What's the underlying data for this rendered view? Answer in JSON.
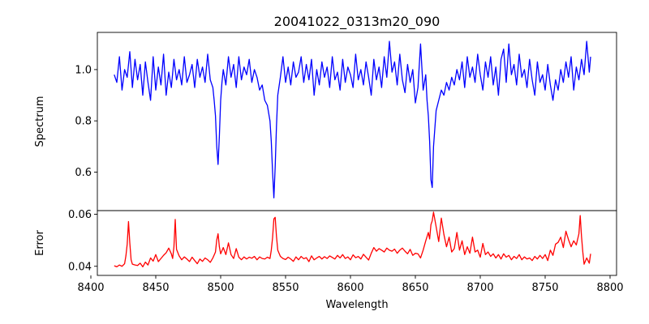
{
  "chart_data": [
    {
      "type": "line",
      "title": "20041022_0313m20_090",
      "xlabel": "",
      "ylabel": "Spectrum",
      "xlim": [
        8405,
        8805
      ],
      "ylim": [
        0.45,
        1.145
      ],
      "yticks": [
        0.6,
        0.8,
        1.0
      ],
      "ytick_labels": [
        "0.6",
        "0.8",
        "1.0"
      ],
      "color": "#0000ff",
      "series": [
        {
          "x": [
            8418,
            8420,
            8422,
            8424,
            8426,
            8428,
            8430,
            8432,
            8434,
            8436,
            8438,
            8440,
            8442,
            8444,
            8446,
            8448,
            8450,
            8452,
            8454,
            8456,
            8458,
            8460,
            8462,
            8464,
            8466,
            8468,
            8470,
            8472,
            8474,
            8476,
            8478,
            8480,
            8482,
            8484,
            8486,
            8488,
            8490,
            8492,
            8494,
            8495,
            8496,
            8497,
            8498,
            8499,
            8500,
            8501,
            8502,
            8504,
            8506,
            8508,
            8510,
            8512,
            8514,
            8516,
            8518,
            8520,
            8522,
            8524,
            8526,
            8528,
            8530,
            8532,
            8534,
            8536,
            8538,
            8539,
            8540,
            8541,
            8542,
            8543,
            8544,
            8546,
            8548,
            8550,
            8552,
            8554,
            8556,
            8558,
            8560,
            8562,
            8564,
            8566,
            8568,
            8570,
            8572,
            8574,
            8576,
            8578,
            8580,
            8582,
            8584,
            8586,
            8588,
            8590,
            8592,
            8594,
            8596,
            8598,
            8600,
            8602,
            8604,
            8606,
            8608,
            8610,
            8612,
            8614,
            8616,
            8618,
            8620,
            8622,
            8624,
            8626,
            8628,
            8630,
            8632,
            8634,
            8636,
            8638,
            8640,
            8642,
            8644,
            8646,
            8648,
            8650,
            8652,
            8654,
            8656,
            8658,
            8659,
            8660,
            8661,
            8662,
            8663,
            8664,
            8666,
            8668,
            8670,
            8672,
            8674,
            8676,
            8678,
            8680,
            8682,
            8684,
            8686,
            8688,
            8690,
            8692,
            8694,
            8696,
            8698,
            8700,
            8702,
            8704,
            8706,
            8708,
            8710,
            8712,
            8714,
            8716,
            8718,
            8720,
            8722,
            8724,
            8726,
            8728,
            8730,
            8732,
            8734,
            8736,
            8738,
            8740,
            8742,
            8744,
            8746,
            8748,
            8750,
            8752,
            8754,
            8756,
            8758,
            8760,
            8762,
            8764,
            8766,
            8768,
            8770,
            8772,
            8774,
            8776,
            8778,
            8780,
            8782,
            8784,
            8785
          ],
          "y": [
            0.98,
            0.95,
            1.05,
            0.92,
            1.0,
            0.97,
            1.07,
            0.93,
            1.04,
            0.96,
            1.02,
            0.9,
            1.03,
            0.95,
            0.88,
            1.05,
            0.92,
            1.01,
            0.94,
            1.06,
            0.9,
            0.99,
            0.93,
            1.04,
            0.96,
            1.0,
            0.94,
            1.05,
            0.95,
            0.98,
            1.02,
            0.93,
            1.04,
            0.97,
            1.01,
            0.95,
            1.06,
            0.96,
            0.93,
            0.88,
            0.82,
            0.7,
            0.63,
            0.74,
            0.88,
            0.95,
            1.0,
            0.94,
            1.05,
            0.97,
            1.02,
            0.93,
            1.05,
            0.96,
            1.01,
            0.98,
            1.04,
            0.95,
            1.0,
            0.97,
            0.92,
            0.94,
            0.88,
            0.86,
            0.8,
            0.72,
            0.6,
            0.5,
            0.62,
            0.78,
            0.9,
            0.97,
            1.05,
            0.95,
            1.01,
            0.94,
            1.03,
            0.97,
            0.99,
            1.05,
            0.95,
            1.02,
            0.96,
            1.04,
            0.9,
            1.0,
            0.94,
            1.03,
            0.97,
            1.01,
            0.93,
            1.05,
            0.96,
            0.99,
            0.92,
            1.04,
            0.95,
            1.01,
            0.98,
            0.93,
            1.06,
            0.96,
            1.0,
            0.94,
            1.03,
            0.97,
            0.9,
            1.04,
            0.96,
            1.01,
            0.93,
            1.05,
            0.97,
            1.11,
            0.99,
            1.03,
            0.94,
            1.06,
            0.96,
            0.91,
            1.02,
            0.95,
            1.0,
            0.87,
            0.93,
            1.1,
            0.92,
            0.98,
            0.88,
            0.82,
            0.72,
            0.57,
            0.54,
            0.7,
            0.84,
            0.88,
            0.92,
            0.9,
            0.95,
            0.92,
            0.97,
            0.94,
            1.0,
            0.96,
            1.03,
            0.93,
            1.05,
            0.97,
            1.01,
            0.95,
            1.06,
            0.98,
            0.92,
            1.03,
            0.97,
            1.05,
            0.94,
            1.01,
            0.9,
            1.04,
            1.08,
            0.95,
            1.1,
            0.98,
            1.02,
            0.94,
            1.06,
            0.97,
            1.0,
            0.93,
            1.04,
            0.96,
            0.9,
            1.03,
            0.95,
            0.98,
            0.92,
            1.02,
            0.94,
            0.88,
            0.96,
            0.92,
            1.0,
            0.95,
            1.03,
            0.97,
            1.05,
            0.92,
            1.01,
            0.96,
            1.04,
            0.98,
            1.11,
            0.99,
            1.05
          ]
        }
      ]
    },
    {
      "type": "line",
      "title": "",
      "xlabel": "Wavelength",
      "ylabel": "Error",
      "xlim": [
        8405,
        8805
      ],
      "ylim": [
        0.0365,
        0.0614
      ],
      "xticks": [
        8400,
        8450,
        8500,
        8550,
        8600,
        8650,
        8700,
        8750,
        8800
      ],
      "xtick_labels": [
        "8400",
        "8450",
        "8500",
        "8550",
        "8600",
        "8650",
        "8700",
        "8750",
        "8800"
      ],
      "yticks": [
        0.04,
        0.06
      ],
      "ytick_labels": [
        "0.04",
        "0.06"
      ],
      "color": "#ff0000",
      "series": [
        {
          "x": [
            8418,
            8420,
            8422,
            8424,
            8426,
            8427,
            8428,
            8429,
            8430,
            8431,
            8432,
            8434,
            8436,
            8438,
            8440,
            8442,
            8444,
            8446,
            8448,
            8450,
            8452,
            8454,
            8456,
            8458,
            8460,
            8462,
            8463,
            8464,
            8465,
            8466,
            8468,
            8470,
            8472,
            8474,
            8476,
            8478,
            8480,
            8482,
            8484,
            8486,
            8488,
            8490,
            8492,
            8494,
            8496,
            8497,
            8498,
            8499,
            8500,
            8502,
            8504,
            8506,
            8508,
            8510,
            8512,
            8514,
            8516,
            8518,
            8520,
            8522,
            8524,
            8526,
            8528,
            8530,
            8532,
            8534,
            8536,
            8538,
            8539,
            8540,
            8541,
            8542,
            8543,
            8544,
            8546,
            8548,
            8550,
            8552,
            8554,
            8556,
            8558,
            8560,
            8562,
            8564,
            8566,
            8568,
            8570,
            8572,
            8574,
            8576,
            8578,
            8580,
            8582,
            8584,
            8586,
            8588,
            8590,
            8592,
            8594,
            8596,
            8598,
            8600,
            8602,
            8604,
            8606,
            8608,
            8610,
            8612,
            8614,
            8616,
            8618,
            8620,
            8622,
            8624,
            8626,
            8628,
            8630,
            8632,
            8634,
            8636,
            8638,
            8640,
            8642,
            8644,
            8646,
            8648,
            8650,
            8652,
            8654,
            8656,
            8658,
            8660,
            8661,
            8662,
            8663,
            8664,
            8666,
            8668,
            8670,
            8672,
            8674,
            8676,
            8678,
            8680,
            8682,
            8684,
            8686,
            8688,
            8690,
            8692,
            8694,
            8696,
            8698,
            8700,
            8702,
            8704,
            8706,
            8708,
            8710,
            8712,
            8714,
            8716,
            8718,
            8720,
            8722,
            8724,
            8726,
            8728,
            8730,
            8732,
            8734,
            8736,
            8738,
            8740,
            8742,
            8744,
            8746,
            8748,
            8750,
            8752,
            8754,
            8756,
            8758,
            8760,
            8762,
            8764,
            8766,
            8768,
            8770,
            8772,
            8774,
            8776,
            8777,
            8778,
            8779,
            8780,
            8782,
            8784,
            8785
          ],
          "y": [
            0.0402,
            0.0398,
            0.0405,
            0.04,
            0.041,
            0.044,
            0.0485,
            0.0572,
            0.049,
            0.0425,
            0.0408,
            0.0405,
            0.0403,
            0.0412,
            0.0398,
            0.0416,
            0.0405,
            0.0432,
            0.042,
            0.0445,
            0.0418,
            0.043,
            0.0442,
            0.0452,
            0.047,
            0.0448,
            0.043,
            0.0475,
            0.058,
            0.0465,
            0.044,
            0.0425,
            0.0436,
            0.0428,
            0.0418,
            0.0435,
            0.0422,
            0.041,
            0.0428,
            0.0419,
            0.0432,
            0.0425,
            0.0415,
            0.0432,
            0.0455,
            0.0502,
            0.0525,
            0.0475,
            0.0448,
            0.0472,
            0.0445,
            0.049,
            0.0445,
            0.043,
            0.0468,
            0.0435,
            0.0425,
            0.0436,
            0.0428,
            0.0435,
            0.0431,
            0.0438,
            0.0425,
            0.0436,
            0.043,
            0.0428,
            0.0435,
            0.043,
            0.0462,
            0.051,
            0.0582,
            0.0588,
            0.0515,
            0.0462,
            0.0438,
            0.043,
            0.0426,
            0.0435,
            0.0428,
            0.0419,
            0.0436,
            0.0425,
            0.0438,
            0.0429,
            0.0433,
            0.0418,
            0.044,
            0.0425,
            0.0432,
            0.0438,
            0.0428,
            0.0437,
            0.043,
            0.044,
            0.0434,
            0.0428,
            0.0442,
            0.0432,
            0.0445,
            0.043,
            0.0436,
            0.0425,
            0.0444,
            0.0433,
            0.0438,
            0.0428,
            0.0446,
            0.0435,
            0.0424,
            0.045,
            0.0472,
            0.0458,
            0.0468,
            0.0462,
            0.0455,
            0.047,
            0.0462,
            0.0458,
            0.0466,
            0.045,
            0.0462,
            0.047,
            0.0458,
            0.0448,
            0.0465,
            0.0442,
            0.045,
            0.0448,
            0.0432,
            0.0462,
            0.0498,
            0.053,
            0.0505,
            0.056,
            0.0575,
            0.0608,
            0.0552,
            0.0495,
            0.0585,
            0.0522,
            0.0475,
            0.0512,
            0.0455,
            0.0468,
            0.053,
            0.0462,
            0.0498,
            0.0445,
            0.0475,
            0.045,
            0.0512,
            0.0455,
            0.0462,
            0.0435,
            0.0488,
            0.0445,
            0.0455,
            0.0438,
            0.0448,
            0.0432,
            0.0445,
            0.0428,
            0.0448,
            0.0435,
            0.0442,
            0.0425,
            0.0438,
            0.043,
            0.0445,
            0.0425,
            0.0436,
            0.0428,
            0.0432,
            0.0422,
            0.0438,
            0.0428,
            0.0442,
            0.043,
            0.0445,
            0.0422,
            0.0462,
            0.0442,
            0.0485,
            0.0492,
            0.0512,
            0.0472,
            0.0535,
            0.0502,
            0.0475,
            0.0498,
            0.0482,
            0.0525,
            0.0595,
            0.0515,
            0.0455,
            0.0408,
            0.0432,
            0.0412,
            0.0448
          ]
        }
      ]
    }
  ]
}
